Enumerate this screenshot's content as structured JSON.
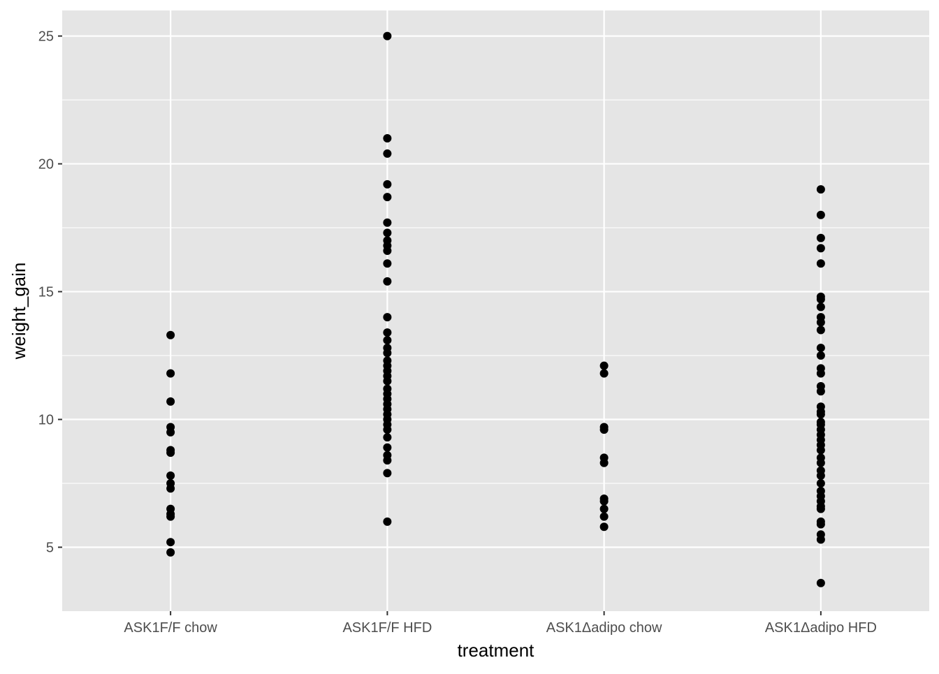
{
  "chart_data": {
    "type": "scatter",
    "title": "",
    "xlabel": "treatment",
    "ylabel": "weight_gain",
    "categories": [
      "ASK1F/F chow",
      "ASK1F/F HFD",
      "ASK1Δadipo chow",
      "ASK1Δadipo HFD"
    ],
    "ylim": [
      2.5,
      26
    ],
    "yticks": [
      5,
      10,
      15,
      20,
      25
    ],
    "grid": true,
    "legend": "none",
    "colors": {
      "panel_background": "#e5e5e5",
      "grid": "#ffffff",
      "point": "#000000",
      "tick_label": "#4d4d4d"
    },
    "series": [
      {
        "category": "ASK1F/F chow",
        "values": [
          13.3,
          11.8,
          10.7,
          9.7,
          9.5,
          8.8,
          8.7,
          7.8,
          7.5,
          7.3,
          6.5,
          6.3,
          6.2,
          5.2,
          4.8
        ]
      },
      {
        "category": "ASK1F/F HFD",
        "values": [
          25.0,
          21.0,
          20.4,
          19.2,
          18.7,
          17.7,
          17.3,
          17.0,
          16.8,
          16.6,
          16.1,
          15.4,
          14.0,
          13.4,
          13.1,
          12.8,
          12.6,
          12.3,
          12.1,
          11.9,
          11.7,
          11.5,
          11.2,
          11.0,
          10.8,
          10.6,
          10.4,
          10.2,
          10.0,
          9.8,
          9.6,
          9.3,
          8.9,
          8.6,
          8.4,
          7.9,
          6.0
        ]
      },
      {
        "category": "ASK1Δadipo chow",
        "values": [
          12.1,
          11.8,
          9.7,
          9.6,
          8.5,
          8.3,
          6.9,
          6.8,
          6.5,
          6.2,
          5.8
        ]
      },
      {
        "category": "ASK1Δadipo HFD",
        "values": [
          19.0,
          18.0,
          17.1,
          16.7,
          16.1,
          14.8,
          14.7,
          14.4,
          14.0,
          13.8,
          13.5,
          12.8,
          12.5,
          12.0,
          11.8,
          11.3,
          11.1,
          10.5,
          10.3,
          10.2,
          9.9,
          9.8,
          9.6,
          9.4,
          9.2,
          9.0,
          8.8,
          8.5,
          8.3,
          8.0,
          7.8,
          7.5,
          7.2,
          7.0,
          6.8,
          6.6,
          6.5,
          6.0,
          5.9,
          5.5,
          5.3,
          3.6
        ]
      }
    ]
  }
}
